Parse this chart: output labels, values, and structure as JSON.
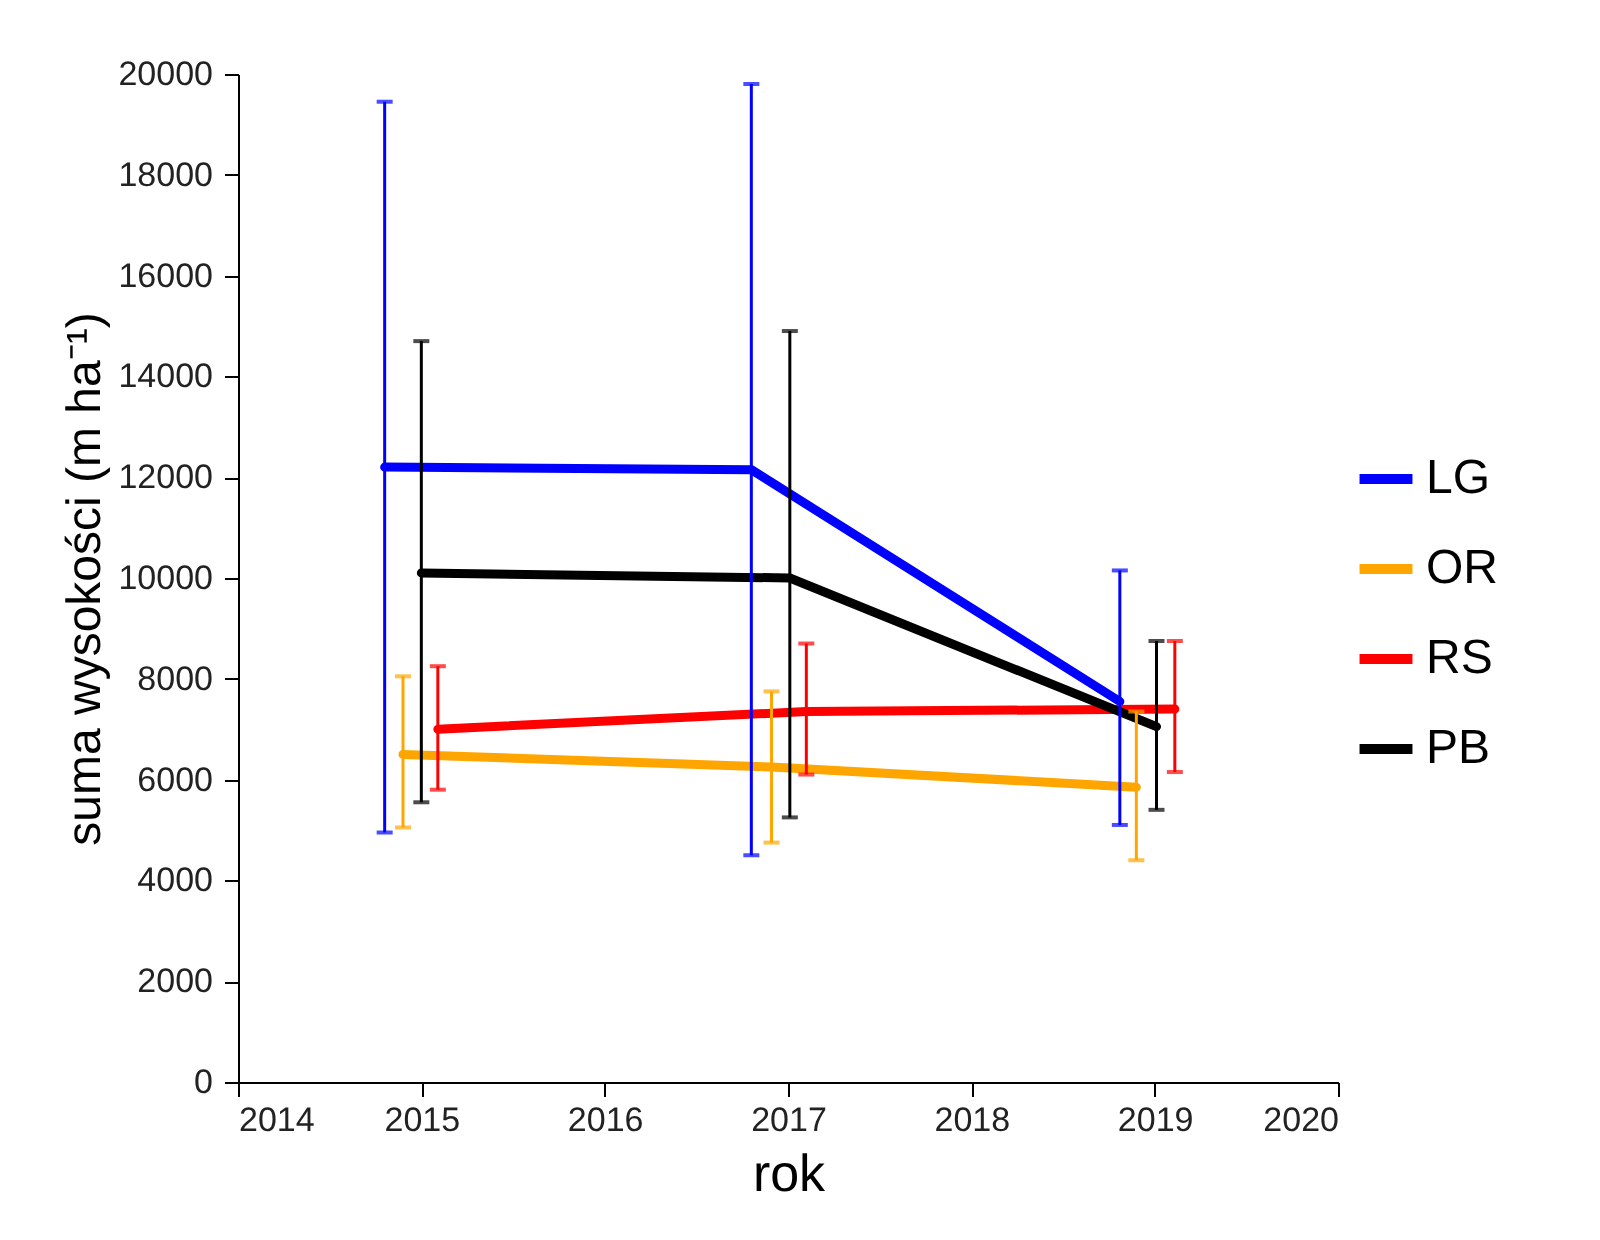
{
  "chart_data": {
    "type": "line",
    "xlabel": "rok",
    "ylabel": "suma wysokości (m ha⁻¹)",
    "xlim": [
      2014,
      2020
    ],
    "xticks": [
      2014,
      2015,
      2016,
      2017,
      2018,
      2019,
      2020
    ],
    "ylim": [
      0,
      20000
    ],
    "yticks": [
      0,
      2000,
      4000,
      6000,
      8000,
      10000,
      12000,
      14000,
      16000,
      18000,
      20000
    ],
    "grid": false,
    "legend": "right",
    "marker": "none",
    "line_style": "solid",
    "series": [
      {
        "name": "LG",
        "color": "#0000ff",
        "x": [
          2014.8,
          2016.8,
          2018.81
        ],
        "values": [
          12200,
          12150,
          7550
        ],
        "errors": [
          [
            4950,
            19450
          ],
          [
            4500,
            19800
          ],
          [
            5100,
            10150
          ]
        ]
      },
      {
        "name": "OR",
        "color": "#ffa500",
        "x": [
          2014.9,
          2016.91,
          2018.9
        ],
        "values": [
          6500,
          6250,
          5850
        ],
        "errors": [
          [
            5050,
            8050
          ],
          [
            4750,
            7750
          ],
          [
            4400,
            7350
          ]
        ]
      },
      {
        "name": "RS",
        "color": "#ff0000",
        "x": [
          2015.09,
          2017.1,
          2019.11
        ],
        "values": [
          7000,
          7350,
          7400
        ],
        "errors": [
          [
            5800,
            8250
          ],
          [
            6100,
            8700
          ],
          [
            6150,
            8750
          ]
        ]
      },
      {
        "name": "PB",
        "color": "#000000",
        "x": [
          2015.0,
          2017.01,
          2019.01
        ],
        "values": [
          10100,
          10000,
          7050
        ],
        "errors": [
          [
            5550,
            14700
          ],
          [
            5250,
            14900
          ],
          [
            5400,
            8750
          ]
        ]
      }
    ]
  }
}
